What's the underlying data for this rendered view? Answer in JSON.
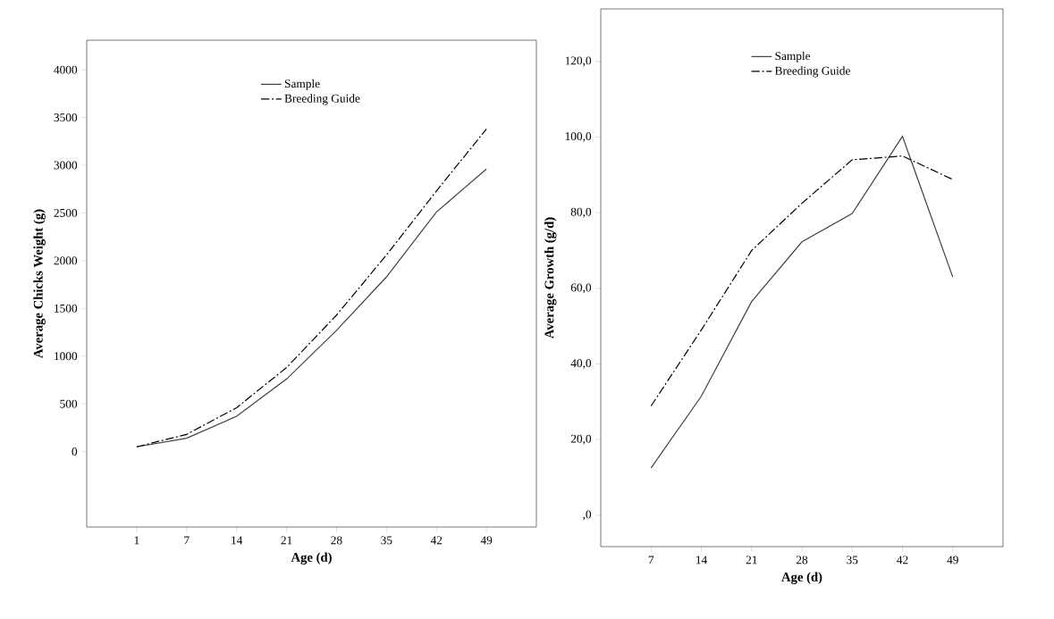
{
  "chart_data": [
    {
      "type": "line",
      "xlabel": "Age (d)",
      "ylabel": "Average Chicks Weight (g)",
      "categories": [
        "1",
        "7",
        "14",
        "21",
        "28",
        "35",
        "42",
        "49"
      ],
      "series": [
        {
          "name": "Sample",
          "color": "#404040",
          "line_style": "solid",
          "values": [
            50,
            140,
            370,
            760,
            1270,
            1830,
            2510,
            2960
          ]
        },
        {
          "name": "Breeding Guide",
          "color": "#000000",
          "line_style": "dashdot",
          "values": [
            50,
            180,
            460,
            880,
            1430,
            2060,
            2730,
            3380
          ]
        }
      ],
      "ylim": [
        -790,
        4310
      ],
      "yticks": [
        0,
        500,
        1000,
        1500,
        2000,
        2500,
        3000,
        3500,
        4000
      ],
      "legend": "top",
      "grid": false
    },
    {
      "type": "line",
      "xlabel": "Age (d)",
      "ylabel": "Average Growth (g/d)",
      "categories": [
        "7",
        "14",
        "21",
        "28",
        "35",
        "42",
        "49"
      ],
      "series": [
        {
          "name": "Sample",
          "color": "#404040",
          "line_style": "solid",
          "values": [
            12.5,
            31.5,
            56.5,
            72.3,
            79.8,
            100.2,
            63.0
          ]
        },
        {
          "name": "Breeding Guide",
          "color": "#000000",
          "line_style": "dashdot",
          "values": [
            28.9,
            49.0,
            70.0,
            82.5,
            94.0,
            95.0,
            88.8
          ]
        }
      ],
      "ylim": [
        -8.3,
        133.9
      ],
      "yticks": [
        {
          "value": 0,
          "label": ",0"
        },
        {
          "value": 20,
          "label": "20,0"
        },
        {
          "value": 40,
          "label": "40,0"
        },
        {
          "value": 60,
          "label": "60,0"
        },
        {
          "value": 80,
          "label": "80,0"
        },
        {
          "value": 100,
          "label": "100,0"
        },
        {
          "value": 120,
          "label": "120,0"
        }
      ],
      "legend": "top",
      "grid": false
    }
  ]
}
